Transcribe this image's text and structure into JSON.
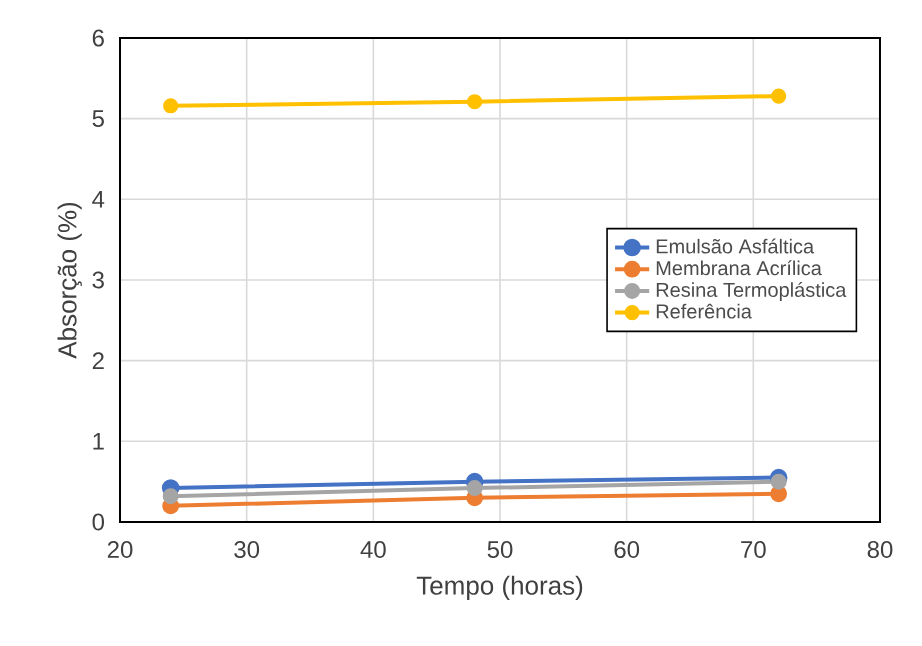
{
  "chart_data": {
    "type": "line",
    "xlabel": "Tempo (horas)",
    "ylabel": "Absorção (%)",
    "x": [
      24,
      48,
      72
    ],
    "series": [
      {
        "name": "Emulsão Asfáltica",
        "color": "#4472c4",
        "values": [
          0.42,
          0.5,
          0.55
        ]
      },
      {
        "name": "Membrana Acrílica",
        "color": "#ed7d31",
        "values": [
          0.2,
          0.3,
          0.35
        ]
      },
      {
        "name": "Resina Termoplástica",
        "color": "#a5a5a5",
        "values": [
          0.32,
          0.42,
          0.5
        ]
      },
      {
        "name": "Referência",
        "color": "#ffc000",
        "values": [
          5.16,
          5.21,
          5.28
        ]
      }
    ],
    "xlim": [
      20,
      80
    ],
    "xticks": [
      20,
      30,
      40,
      50,
      60,
      70,
      80
    ],
    "ylim": [
      0,
      6
    ],
    "yticks": [
      0,
      1,
      2,
      3,
      4,
      5,
      6
    ],
    "grid": true,
    "legend": "right",
    "marker": "circle",
    "line_style": "solid"
  }
}
